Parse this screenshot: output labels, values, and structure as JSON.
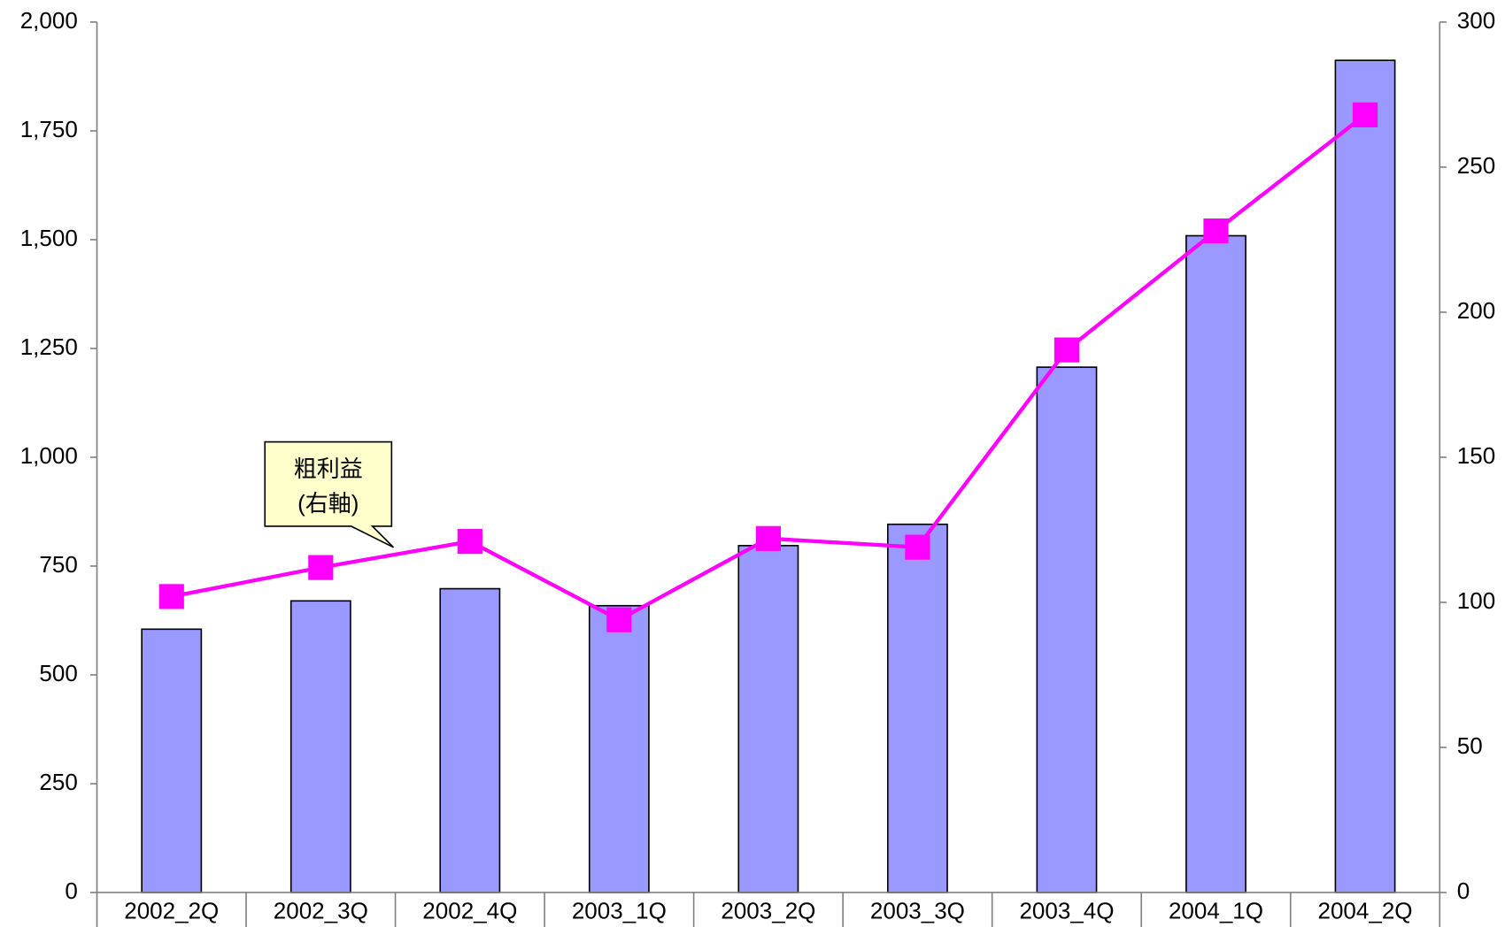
{
  "chart_data": {
    "type": "bar_line",
    "categories": [
      "2002_2Q",
      "2002_3Q",
      "2002_4Q",
      "2003_1Q",
      "2003_2Q",
      "2003_3Q",
      "2003_4Q",
      "2004_1Q",
      "2004_2Q"
    ],
    "series": [
      {
        "color": "#9999ff",
        "values": [
          605,
          670,
          698,
          659,
          797,
          846,
          1207,
          1509,
          1912
        ]
      },
      {
        "color": "#ff00ff",
        "axis": "y2",
        "values": [
          102,
          112,
          121,
          94,
          122,
          119,
          187,
          228,
          268
        ]
      }
    ],
    "ylim": [
      0,
      2000
    ],
    "yticks": [
      0,
      250,
      500,
      750,
      {
        "value": 1000,
        "label": "1,000"
      },
      {
        "value": 1250,
        "label": "1,250"
      },
      {
        "value": 1500,
        "label": "1,500"
      },
      {
        "value": 1750,
        "label": "1,750"
      },
      {
        "value": 2000,
        "label": "2,000"
      }
    ],
    "y2lim": [
      0,
      300
    ],
    "y2ticks": [
      0,
      50,
      100,
      150,
      200,
      250,
      300
    ],
    "annotations": [
      {
        "lines": [
          "粗利益",
          "(右軸)"
        ]
      }
    ]
  }
}
